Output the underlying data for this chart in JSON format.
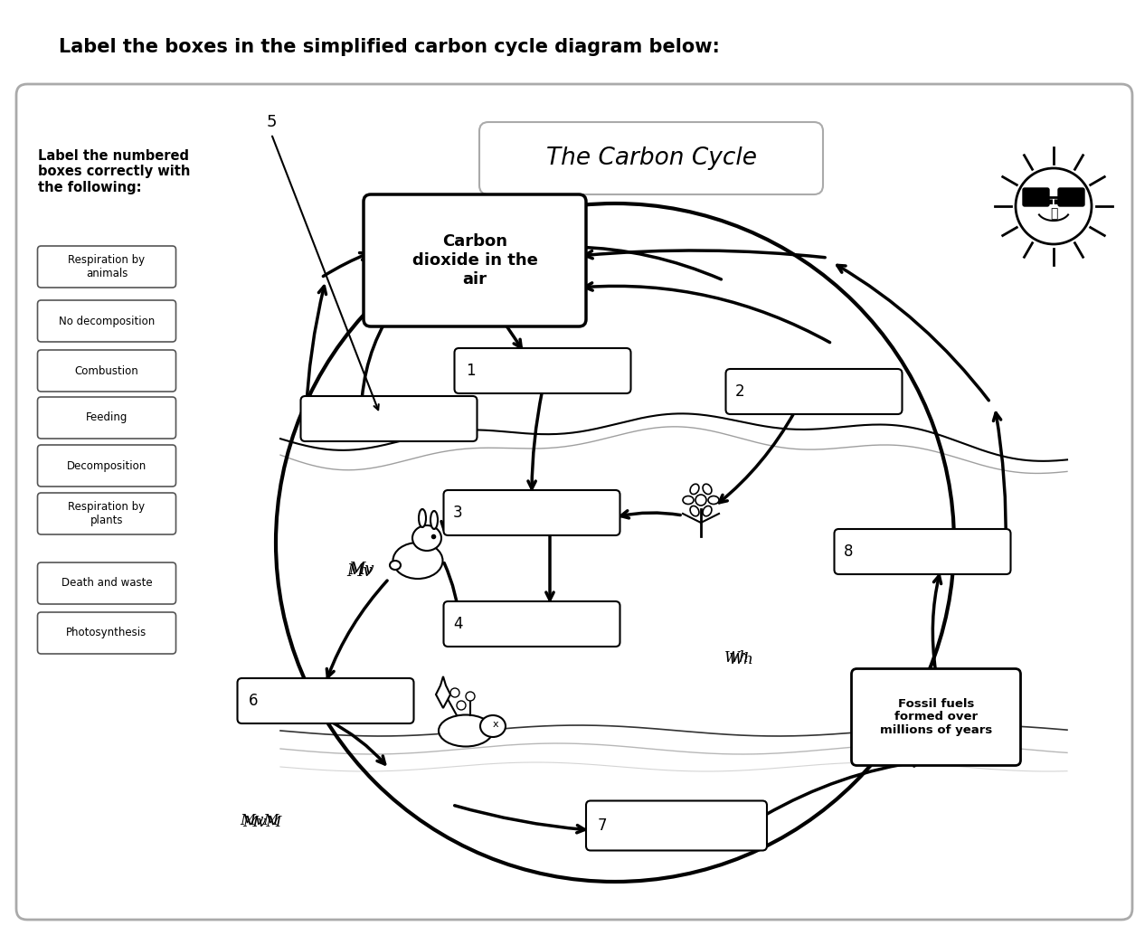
{
  "title": "Label the boxes in the simplified carbon cycle diagram below:",
  "diagram_title": "The Carbon Cycle",
  "background_color": "#ffffff",
  "label_items": [
    "Respiration by\nanimals",
    "No decomposition",
    "Combustion",
    "Feeding",
    "Decomposition",
    "Respiration by\nplants",
    "Death and waste",
    "Photosynthesis"
  ],
  "co2_box_text": "Carbon\ndioxide in the\nair",
  "fossil_box_text": "Fossil fuels\nformed over\nmillions of years",
  "squiggle1": "Mv",
  "squiggle2": "Wh",
  "squiggle3": "MvM"
}
